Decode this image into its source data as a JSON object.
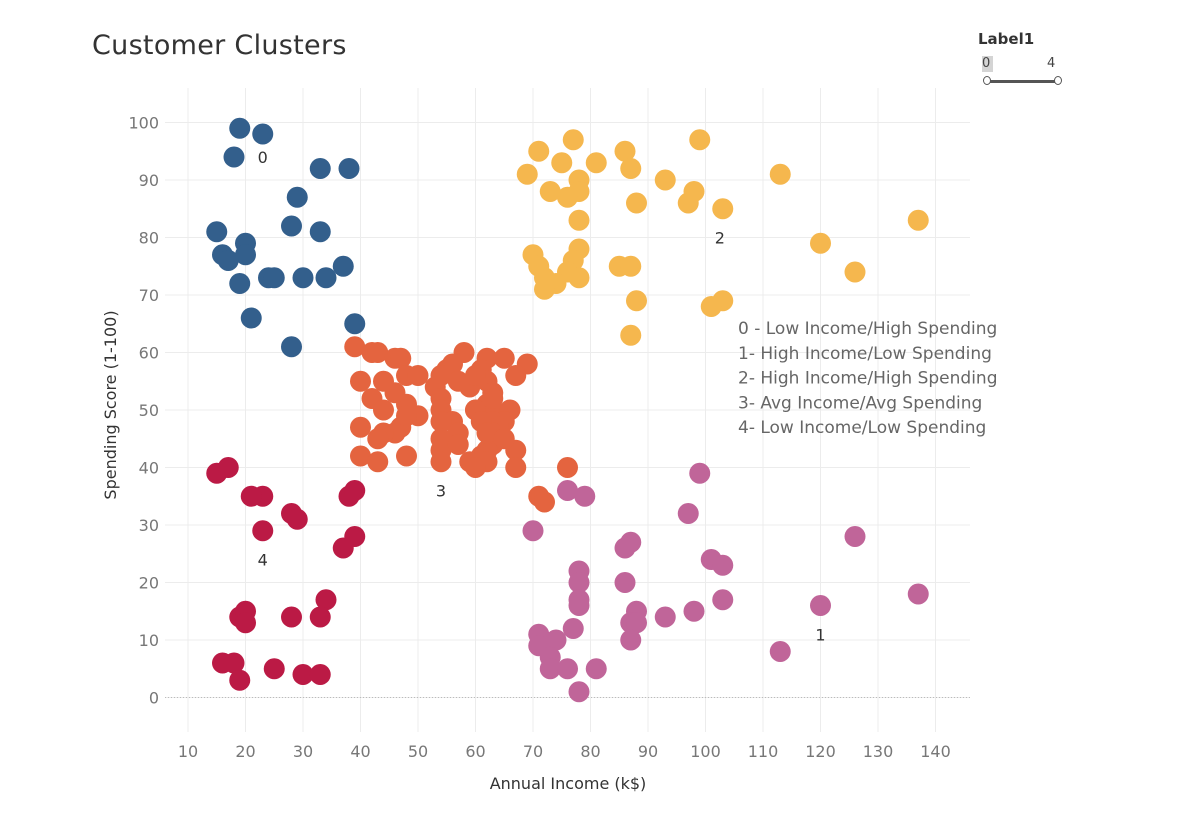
{
  "filter": {
    "label": "Label1",
    "min": "0",
    "max": "4"
  },
  "chart_data": {
    "type": "scatter",
    "title": "Customer Clusters",
    "xlabel": "Annual Income (k$)",
    "ylabel": "Spending Score (1-100)",
    "xlim": [
      6,
      146
    ],
    "ylim": [
      -6,
      106
    ],
    "xticks": [
      10,
      20,
      30,
      40,
      50,
      60,
      70,
      80,
      90,
      100,
      110,
      120,
      130,
      140
    ],
    "yticks": [
      0,
      10,
      20,
      30,
      40,
      50,
      60,
      70,
      80,
      90,
      100
    ],
    "grid": true,
    "legend": [
      "0 - Low Income/High Spending",
      "1- High Income/Low Spending",
      "2- High Income/High Spending",
      "3- Avg Income/Avg Spending",
      "4- Low Income/Low Spending"
    ],
    "cluster_labels": [
      {
        "text": "0",
        "x": 23,
        "y": 94
      },
      {
        "text": "1",
        "x": 120,
        "y": 11
      },
      {
        "text": "2",
        "x": 102.5,
        "y": 80
      },
      {
        "text": "3",
        "x": 54,
        "y": 36
      },
      {
        "text": "4",
        "x": 23,
        "y": 24
      }
    ],
    "series": [
      {
        "color": "#335f8c",
        "points": [
          [
            19,
            99
          ],
          [
            23,
            98
          ],
          [
            18,
            94
          ],
          [
            33,
            92
          ],
          [
            38,
            92
          ],
          [
            29,
            87
          ],
          [
            15,
            81
          ],
          [
            28,
            82
          ],
          [
            33,
            81
          ],
          [
            20,
            79
          ],
          [
            16,
            77
          ],
          [
            20,
            77
          ],
          [
            17,
            76
          ],
          [
            37,
            75
          ],
          [
            24,
            73
          ],
          [
            25,
            73
          ],
          [
            30,
            73
          ],
          [
            34,
            73
          ],
          [
            19,
            72
          ],
          [
            21,
            66
          ],
          [
            39,
            65
          ],
          [
            28,
            61
          ]
        ]
      },
      {
        "color": "#c06599",
        "points": [
          [
            99,
            39
          ],
          [
            76,
            36
          ],
          [
            79,
            35
          ],
          [
            97,
            32
          ],
          [
            70,
            29
          ],
          [
            126,
            28
          ],
          [
            87,
            27
          ],
          [
            86,
            26
          ],
          [
            101,
            24
          ],
          [
            103,
            23
          ],
          [
            78,
            22
          ],
          [
            78,
            20
          ],
          [
            86,
            20
          ],
          [
            78,
            17
          ],
          [
            103,
            17
          ],
          [
            78,
            16
          ],
          [
            120,
            16
          ],
          [
            88,
            15
          ],
          [
            98,
            15
          ],
          [
            93,
            14
          ],
          [
            87,
            13
          ],
          [
            88,
            13
          ],
          [
            77,
            12
          ],
          [
            71,
            11
          ],
          [
            87,
            10
          ],
          [
            71,
            9
          ],
          [
            74,
            10
          ],
          [
            73,
            7
          ],
          [
            73,
            5
          ],
          [
            76,
            5
          ],
          [
            81,
            5
          ],
          [
            113,
            8
          ],
          [
            78,
            1
          ],
          [
            137,
            18
          ]
        ]
      },
      {
        "color": "#f5b74e",
        "points": [
          [
            77,
            97
          ],
          [
            99,
            97
          ],
          [
            71,
            95
          ],
          [
            86,
            95
          ],
          [
            75,
            93
          ],
          [
            81,
            93
          ],
          [
            69,
            91
          ],
          [
            87,
            92
          ],
          [
            113,
            91
          ],
          [
            93,
            90
          ],
          [
            78,
            90
          ],
          [
            73,
            88
          ],
          [
            78,
            88
          ],
          [
            98,
            88
          ],
          [
            76,
            87
          ],
          [
            97,
            86
          ],
          [
            88,
            86
          ],
          [
            103,
            85
          ],
          [
            78,
            83
          ],
          [
            137,
            83
          ],
          [
            120,
            79
          ],
          [
            70,
            77
          ],
          [
            78,
            78
          ],
          [
            71,
            75
          ],
          [
            77,
            76
          ],
          [
            85,
            75
          ],
          [
            87,
            75
          ],
          [
            76,
            74
          ],
          [
            126,
            74
          ],
          [
            72,
            73
          ],
          [
            78,
            73
          ],
          [
            74,
            72
          ],
          [
            72,
            71
          ],
          [
            88,
            69
          ],
          [
            103,
            69
          ],
          [
            101,
            68
          ],
          [
            87,
            63
          ]
        ]
      },
      {
        "color": "#e4643f",
        "points": [
          [
            58,
            60
          ],
          [
            39,
            61
          ],
          [
            42,
            60
          ],
          [
            43,
            60
          ],
          [
            62,
            59
          ],
          [
            46,
            59
          ],
          [
            47,
            59
          ],
          [
            65,
            59
          ],
          [
            69,
            58
          ],
          [
            55,
            57
          ],
          [
            56,
            58
          ],
          [
            61,
            57
          ],
          [
            67,
            56
          ],
          [
            54,
            56
          ],
          [
            62,
            55
          ],
          [
            48,
            56
          ],
          [
            50,
            56
          ],
          [
            44,
            55
          ],
          [
            57,
            55
          ],
          [
            40,
            55
          ],
          [
            53,
            54
          ],
          [
            59,
            54
          ],
          [
            63,
            53
          ],
          [
            42,
            52
          ],
          [
            54,
            52
          ],
          [
            62,
            51
          ],
          [
            48,
            51
          ],
          [
            63,
            50
          ],
          [
            66,
            50
          ],
          [
            60,
            50
          ],
          [
            44,
            50
          ],
          [
            54,
            50
          ],
          [
            61,
            49
          ],
          [
            50,
            49
          ],
          [
            65,
            48
          ],
          [
            63,
            48
          ],
          [
            56,
            48
          ],
          [
            54,
            48
          ],
          [
            47,
            47
          ],
          [
            40,
            47
          ],
          [
            64,
            47
          ],
          [
            63,
            46
          ],
          [
            57,
            46
          ],
          [
            46,
            46
          ],
          [
            44,
            46
          ],
          [
            54,
            45
          ],
          [
            43,
            45
          ],
          [
            63,
            44
          ],
          [
            62,
            43
          ],
          [
            67,
            43
          ],
          [
            54,
            43
          ],
          [
            61,
            42
          ],
          [
            40,
            42
          ],
          [
            48,
            42
          ],
          [
            54,
            41
          ],
          [
            43,
            41
          ],
          [
            59,
            41
          ],
          [
            62,
            41
          ],
          [
            60,
            40
          ],
          [
            67,
            40
          ],
          [
            76,
            40
          ],
          [
            71,
            35
          ],
          [
            72,
            34
          ],
          [
            60,
            50
          ],
          [
            61,
            48
          ],
          [
            62,
            46
          ],
          [
            63,
            52
          ],
          [
            48,
            49
          ],
          [
            46,
            53
          ],
          [
            60,
            56
          ],
          [
            65,
            45
          ],
          [
            57,
            44
          ]
        ]
      },
      {
        "color": "#bb1a45",
        "points": [
          [
            15,
            39
          ],
          [
            17,
            40
          ],
          [
            23,
            35
          ],
          [
            21,
            35
          ],
          [
            38,
            35
          ],
          [
            39,
            36
          ],
          [
            28,
            32
          ],
          [
            29,
            31
          ],
          [
            23,
            29
          ],
          [
            37,
            26
          ],
          [
            39,
            28
          ],
          [
            34,
            17
          ],
          [
            19,
            14
          ],
          [
            20,
            15
          ],
          [
            20,
            13
          ],
          [
            28,
            14
          ],
          [
            33,
            14
          ],
          [
            16,
            6
          ],
          [
            18,
            6
          ],
          [
            25,
            5
          ],
          [
            30,
            4
          ],
          [
            33,
            4
          ],
          [
            19,
            3
          ]
        ]
      }
    ]
  }
}
